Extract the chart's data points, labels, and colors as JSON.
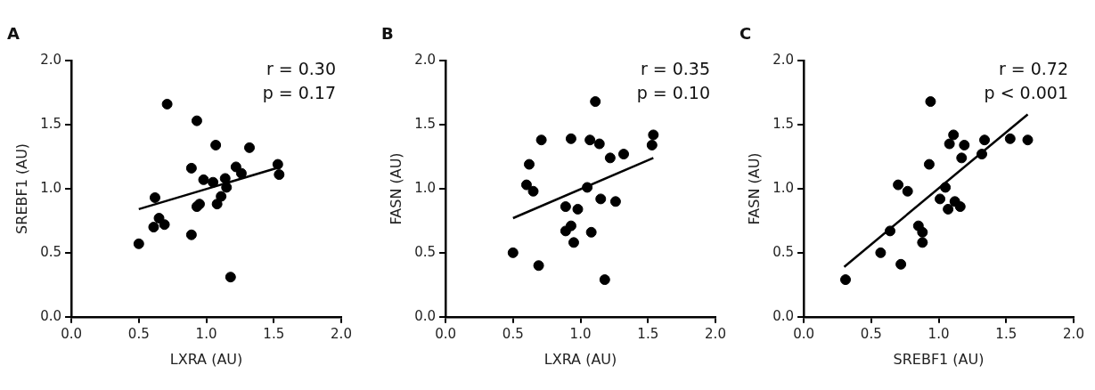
{
  "chart_data": [
    {
      "type": "scatter",
      "title": "A",
      "xlabel": "LXRA (AU)",
      "ylabel": "SREBF1 (AU)",
      "xlim": [
        0,
        2
      ],
      "ylim": [
        0,
        2
      ],
      "xticks": [
        {
          "value": 0,
          "label": "0.0"
        },
        {
          "value": 0.5,
          "label": "0.5"
        },
        {
          "value": 1,
          "label": "1.0"
        },
        {
          "value": 1.5,
          "label": "1.5"
        },
        {
          "value": 2,
          "label": "2.0"
        }
      ],
      "yticks": [
        {
          "value": 0,
          "label": "0.0"
        },
        {
          "value": 0.5,
          "label": "0.5"
        },
        {
          "value": 1,
          "label": "1.0"
        },
        {
          "value": 1.5,
          "label": "1.5"
        },
        {
          "value": 2,
          "label": "2.0"
        }
      ],
      "grid": false,
      "annotations": [
        "r = 0.30",
        "p = 0.17"
      ],
      "series": [
        {
          "type": "scatter",
          "marker": "circle",
          "color": "#000000",
          "x": [
            0.5,
            0.71,
            0.93,
            1.07,
            1.32,
            0.89,
            1.22,
            1.53,
            1.54,
            1.26,
            0.98,
            1.05,
            1.14,
            1.15,
            1.11,
            0.62,
            0.95,
            0.93,
            1.08,
            0.65,
            0.69,
            0.61,
            0.89,
            1.18
          ],
          "values": [
            0.57,
            1.66,
            1.53,
            1.34,
            1.32,
            1.16,
            1.17,
            1.19,
            1.11,
            1.12,
            1.07,
            1.05,
            1.08,
            1.01,
            0.94,
            0.93,
            0.88,
            0.86,
            0.88,
            0.77,
            0.72,
            0.7,
            0.64,
            0.31
          ]
        },
        {
          "type": "line",
          "color": "#000000",
          "x": [
            0.5,
            1.55
          ],
          "values": [
            0.84,
            1.17
          ]
        }
      ]
    },
    {
      "type": "scatter",
      "title": "B",
      "xlabel": "LXRA (AU)",
      "ylabel": "FASN (AU)",
      "xlim": [
        0,
        2
      ],
      "ylim": [
        0,
        2
      ],
      "xticks": [
        {
          "value": 0,
          "label": "0.0"
        },
        {
          "value": 0.5,
          "label": "0.5"
        },
        {
          "value": 1,
          "label": "1.0"
        },
        {
          "value": 1.5,
          "label": "1.5"
        },
        {
          "value": 2,
          "label": "2.0"
        }
      ],
      "yticks": [
        {
          "value": 0,
          "label": "0.0"
        },
        {
          "value": 0.5,
          "label": "0.5"
        },
        {
          "value": 1,
          "label": "1.0"
        },
        {
          "value": 1.5,
          "label": "1.5"
        },
        {
          "value": 2,
          "label": "2.0"
        }
      ],
      "grid": false,
      "annotations": [
        "r = 0.35",
        "p = 0.10"
      ],
      "series": [
        {
          "type": "scatter",
          "marker": "circle",
          "color": "#000000",
          "x": [
            1.11,
            1.54,
            1.53,
            0.71,
            0.93,
            1.07,
            1.14,
            1.32,
            1.22,
            0.62,
            0.6,
            0.65,
            1.05,
            1.15,
            1.26,
            0.89,
            0.98,
            0.93,
            0.89,
            1.08,
            0.95,
            0.5,
            0.69,
            1.18
          ],
          "values": [
            1.68,
            1.42,
            1.34,
            1.38,
            1.39,
            1.38,
            1.35,
            1.27,
            1.24,
            1.19,
            1.03,
            0.98,
            1.01,
            0.92,
            0.9,
            0.86,
            0.84,
            0.71,
            0.67,
            0.66,
            0.58,
            0.5,
            0.4,
            0.29
          ]
        },
        {
          "type": "line",
          "color": "#000000",
          "x": [
            0.5,
            1.54
          ],
          "values": [
            0.77,
            1.24
          ]
        }
      ]
    },
    {
      "type": "scatter",
      "title": "C",
      "xlabel": "SREBF1 (AU)",
      "ylabel": "FASN (AU)",
      "xlim": [
        0,
        2
      ],
      "ylim": [
        0,
        2
      ],
      "xticks": [
        {
          "value": 0,
          "label": "0.0"
        },
        {
          "value": 0.5,
          "label": "0.5"
        },
        {
          "value": 1,
          "label": "1.0"
        },
        {
          "value": 1.5,
          "label": "1.5"
        },
        {
          "value": 2,
          "label": "2.0"
        }
      ],
      "yticks": [
        {
          "value": 0,
          "label": "0.0"
        },
        {
          "value": 0.5,
          "label": "0.5"
        },
        {
          "value": 1,
          "label": "1.0"
        },
        {
          "value": 1.5,
          "label": "1.5"
        },
        {
          "value": 2,
          "label": "2.0"
        }
      ],
      "grid": false,
      "annotations": [
        "r = 0.72",
        "p < 0.001"
      ],
      "series": [
        {
          "type": "scatter",
          "marker": "circle",
          "color": "#000000",
          "x": [
            0.94,
            1.11,
            1.08,
            1.19,
            1.34,
            1.53,
            1.66,
            1.32,
            1.17,
            0.93,
            0.7,
            0.77,
            1.05,
            1.01,
            1.12,
            1.16,
            1.07,
            0.85,
            0.88,
            0.88,
            0.64,
            0.57,
            0.72,
            0.31
          ],
          "values": [
            1.68,
            1.42,
            1.35,
            1.34,
            1.38,
            1.39,
            1.38,
            1.27,
            1.24,
            1.19,
            1.03,
            0.98,
            1.01,
            0.92,
            0.9,
            0.86,
            0.84,
            0.71,
            0.66,
            0.58,
            0.67,
            0.5,
            0.41,
            0.29
          ]
        },
        {
          "type": "line",
          "color": "#000000",
          "x": [
            0.3,
            1.66
          ],
          "values": [
            0.39,
            1.58
          ]
        }
      ]
    }
  ]
}
